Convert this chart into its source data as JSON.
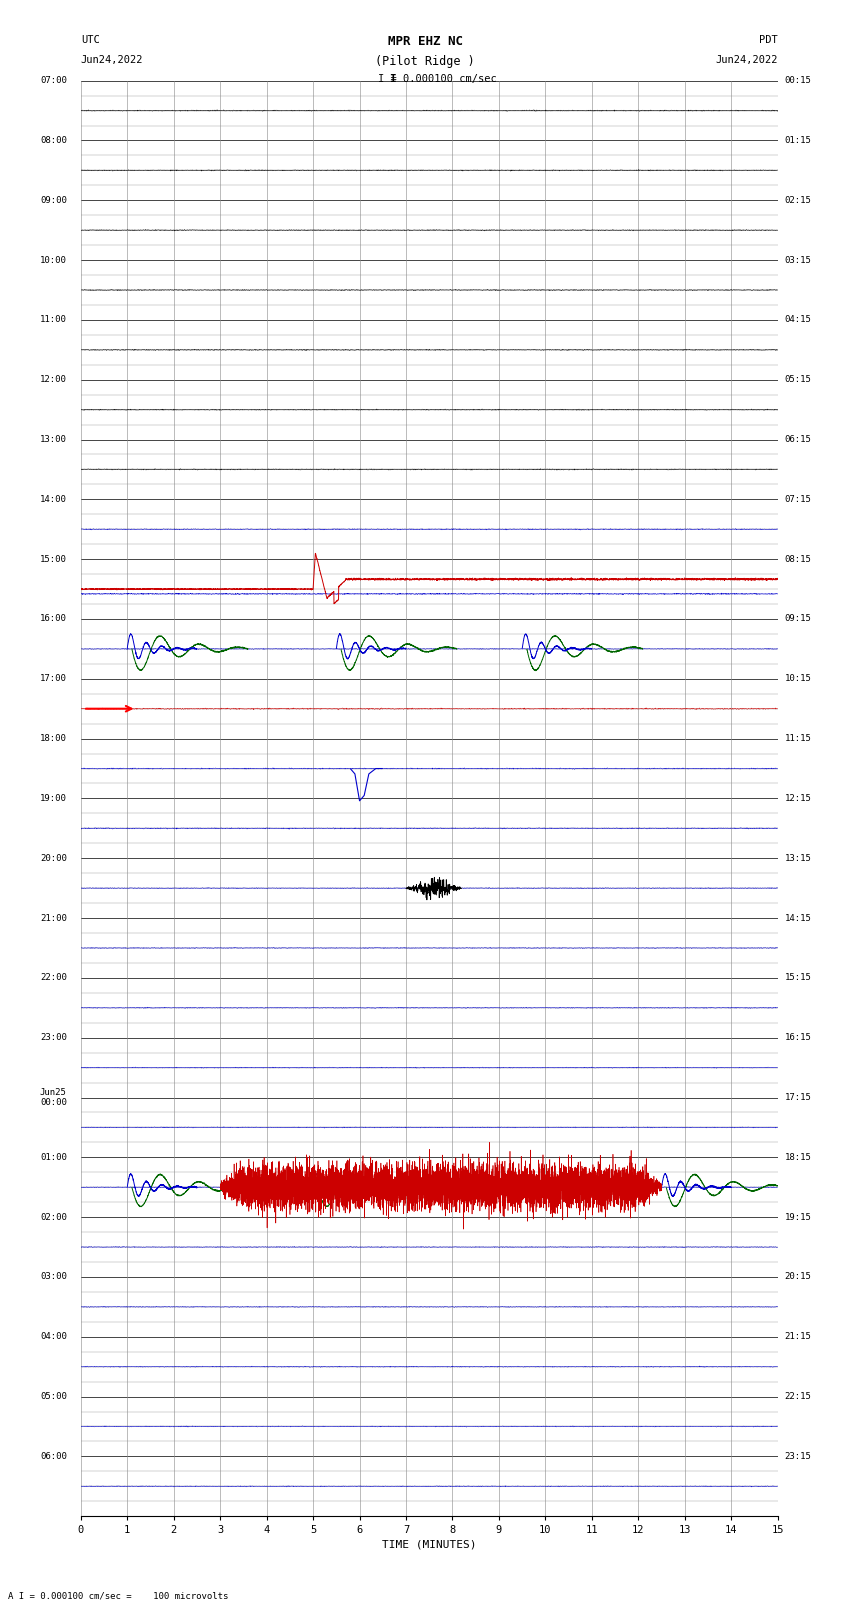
{
  "title_line1": "MPR EHZ NC",
  "title_line2": "(Pilot Ridge )",
  "scale_label": "I = 0.000100 cm/sec",
  "left_label_top": "UTC",
  "left_label_date": "Jun24,2022",
  "right_label_top": "PDT",
  "right_label_date": "Jun24,2022",
  "bottom_label": "TIME (MINUTES)",
  "footer_text": "A I = 0.000100 cm/sec =    100 microvolts",
  "left_times_utc": [
    "07:00",
    "08:00",
    "09:00",
    "10:00",
    "11:00",
    "12:00",
    "13:00",
    "14:00",
    "15:00",
    "16:00",
    "17:00",
    "18:00",
    "19:00",
    "20:00",
    "21:00",
    "22:00",
    "23:00",
    "Jun25\n00:00",
    "01:00",
    "02:00",
    "03:00",
    "04:00",
    "05:00",
    "06:00",
    ""
  ],
  "right_times_pdt": [
    "00:15",
    "01:15",
    "02:15",
    "03:15",
    "04:15",
    "05:15",
    "06:15",
    "07:15",
    "08:15",
    "09:15",
    "10:15",
    "11:15",
    "12:15",
    "13:15",
    "14:15",
    "15:15",
    "16:15",
    "17:15",
    "18:15",
    "19:15",
    "20:15",
    "21:15",
    "22:15",
    "23:15",
    ""
  ],
  "num_rows": 24,
  "x_ticks": [
    0,
    1,
    2,
    3,
    4,
    5,
    6,
    7,
    8,
    9,
    10,
    11,
    12,
    13,
    14,
    15
  ],
  "bg_color": "#ffffff",
  "color_blue": "#0000cc",
  "color_red": "#cc0000",
  "color_green": "#006600",
  "color_black": "#000000"
}
